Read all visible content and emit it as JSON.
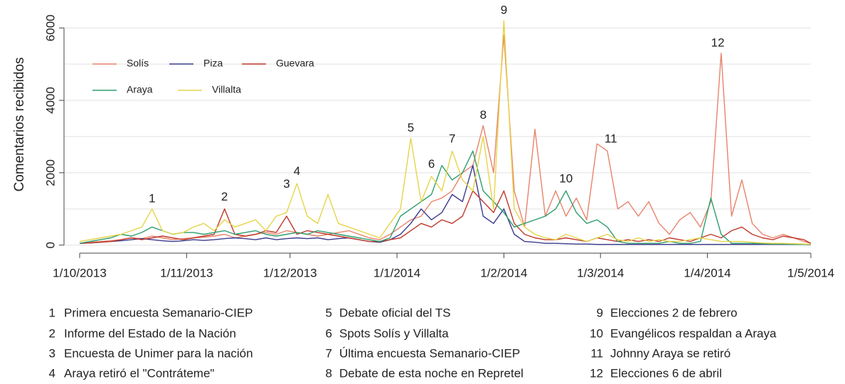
{
  "chart_data": {
    "type": "line",
    "y_label": "Comentarios recibidos",
    "xlim": [
      "2013-10-01",
      "2014-05-01"
    ],
    "xticks": [
      {
        "value": "2013-10-01",
        "label": "1/10/2013"
      },
      {
        "value": "2013-11-01",
        "label": "1/11/2013"
      },
      {
        "value": "2013-12-01",
        "label": "1/12/2013"
      },
      {
        "value": "2014-01-01",
        "label": "1/1/2014"
      },
      {
        "value": "2014-02-01",
        "label": "1/2/2014"
      },
      {
        "value": "2014-03-01",
        "label": "1/3/2014"
      },
      {
        "value": "2014-04-01",
        "label": "1/4/2014"
      },
      {
        "value": "2014-05-01",
        "label": "1/5/2014"
      }
    ],
    "ylim": [
      -300,
      6300
    ],
    "yticks": [
      0,
      2000,
      4000,
      6000
    ],
    "minor_yticks": [
      1000,
      3000,
      5000
    ],
    "grid": true,
    "legend": "upper left",
    "x": [
      "2013-10-01",
      "2013-10-04",
      "2013-10-07",
      "2013-10-10",
      "2013-10-13",
      "2013-10-16",
      "2013-10-19",
      "2013-10-22",
      "2013-10-25",
      "2013-10-28",
      "2013-10-31",
      "2013-11-03",
      "2013-11-06",
      "2013-11-09",
      "2013-11-12",
      "2013-11-15",
      "2013-11-18",
      "2013-11-21",
      "2013-11-24",
      "2013-11-27",
      "2013-11-30",
      "2013-12-03",
      "2013-12-06",
      "2013-12-09",
      "2013-12-12",
      "2013-12-15",
      "2013-12-18",
      "2013-12-21",
      "2013-12-24",
      "2013-12-27",
      "2013-12-30",
      "2014-01-02",
      "2014-01-05",
      "2014-01-08",
      "2014-01-11",
      "2014-01-14",
      "2014-01-17",
      "2014-01-20",
      "2014-01-23",
      "2014-01-26",
      "2014-01-29",
      "2014-02-01",
      "2014-02-04",
      "2014-02-07",
      "2014-02-10",
      "2014-02-13",
      "2014-02-16",
      "2014-02-19",
      "2014-02-22",
      "2014-02-25",
      "2014-02-28",
      "2014-03-03",
      "2014-03-06",
      "2014-03-09",
      "2014-03-12",
      "2014-03-15",
      "2014-03-18",
      "2014-03-21",
      "2014-03-24",
      "2014-03-27",
      "2014-03-30",
      "2014-04-02",
      "2014-04-05",
      "2014-04-08",
      "2014-04-11",
      "2014-04-14",
      "2014-04-17",
      "2014-04-20",
      "2014-04-23",
      "2014-04-26",
      "2014-04-29",
      "2014-05-01"
    ],
    "series": [
      {
        "name": "Solís",
        "color": "#e8836b",
        "values": [
          50,
          80,
          100,
          120,
          150,
          200,
          180,
          250,
          200,
          150,
          180,
          200,
          220,
          250,
          300,
          200,
          250,
          300,
          350,
          300,
          400,
          350,
          300,
          250,
          300,
          350,
          400,
          300,
          200,
          150,
          300,
          500,
          700,
          800,
          1200,
          1300,
          1500,
          2000,
          2200,
          3300,
          2000,
          5800,
          1500,
          500,
          3200,
          800,
          1500,
          800,
          1300,
          700,
          2800,
          2600,
          1000,
          1200,
          800,
          1200,
          600,
          300,
          700,
          900,
          500,
          1200,
          5300,
          800,
          1800,
          600,
          300,
          200,
          300,
          200,
          100,
          50
        ]
      },
      {
        "name": "Piza",
        "color": "#3b3b8f",
        "values": [
          50,
          60,
          80,
          100,
          120,
          150,
          180,
          150,
          120,
          100,
          120,
          150,
          130,
          150,
          180,
          200,
          180,
          150,
          200,
          150,
          180,
          200,
          180,
          200,
          150,
          180,
          200,
          150,
          100,
          80,
          150,
          300,
          600,
          1000,
          700,
          900,
          1400,
          1200,
          2200,
          800,
          600,
          1000,
          300,
          100,
          80,
          50,
          50,
          40,
          30,
          30,
          20,
          20,
          20,
          20,
          20,
          20,
          20,
          20,
          20,
          20,
          20,
          20,
          20,
          20,
          20,
          20,
          20,
          20,
          20,
          20,
          20,
          10
        ]
      },
      {
        "name": "Guevara",
        "color": "#c0392b",
        "values": [
          50,
          60,
          80,
          100,
          150,
          200,
          150,
          200,
          250,
          200,
          150,
          200,
          250,
          300,
          1000,
          300,
          250,
          300,
          400,
          350,
          800,
          300,
          400,
          350,
          300,
          250,
          200,
          150,
          100,
          100,
          150,
          200,
          400,
          600,
          500,
          700,
          600,
          800,
          1500,
          1200,
          900,
          1500,
          600,
          300,
          200,
          150,
          150,
          200,
          150,
          100,
          200,
          150,
          100,
          150,
          100,
          150,
          100,
          200,
          150,
          100,
          200,
          300,
          200,
          400,
          500,
          300,
          200,
          150,
          250,
          200,
          150,
          50
        ]
      },
      {
        "name": "Araya",
        "color": "#2e9e6e",
        "values": [
          50,
          100,
          150,
          200,
          300,
          250,
          350,
          500,
          400,
          300,
          350,
          350,
          300,
          350,
          400,
          300,
          350,
          400,
          300,
          250,
          300,
          350,
          300,
          400,
          350,
          300,
          250,
          200,
          150,
          100,
          200,
          800,
          1000,
          1200,
          1400,
          2200,
          1800,
          2000,
          2600,
          1500,
          1200,
          900,
          500,
          600,
          700,
          800,
          1000,
          1500,
          900,
          600,
          700,
          500,
          100,
          50,
          50,
          50,
          50,
          100,
          50,
          50,
          100,
          1300,
          300,
          50,
          50,
          50,
          40,
          30,
          30,
          20,
          20,
          10
        ]
      },
      {
        "name": "Villalta",
        "color": "#e5d44a",
        "values": [
          100,
          150,
          200,
          250,
          300,
          400,
          500,
          1000,
          400,
          300,
          350,
          500,
          600,
          400,
          700,
          500,
          600,
          700,
          400,
          800,
          900,
          1700,
          800,
          600,
          1400,
          600,
          500,
          400,
          300,
          200,
          600,
          1000,
          2950,
          1200,
          1900,
          1500,
          2600,
          1800,
          1500,
          3000,
          1000,
          6200,
          1000,
          500,
          300,
          200,
          150,
          300,
          200,
          100,
          200,
          300,
          150,
          100,
          200,
          100,
          150,
          100,
          100,
          150,
          200,
          150,
          100,
          100,
          100,
          80,
          60,
          50,
          50,
          40,
          30,
          20
        ]
      }
    ],
    "annotations": [
      {
        "label": "1",
        "x": "2013-10-22",
        "y": 1000
      },
      {
        "label": "2",
        "x": "2013-11-12",
        "y": 1050
      },
      {
        "label": "3",
        "x": "2013-11-30",
        "y": 1400
      },
      {
        "label": "4",
        "x": "2013-12-03",
        "y": 1750
      },
      {
        "label": "5",
        "x": "2014-01-05",
        "y": 2950
      },
      {
        "label": "6",
        "x": "2014-01-11",
        "y": 1950
      },
      {
        "label": "7",
        "x": "2014-01-17",
        "y": 2650
      },
      {
        "label": "8",
        "x": "2014-01-26",
        "y": 3300
      },
      {
        "label": "9",
        "x": "2014-02-01",
        "y": 6200
      },
      {
        "label": "10",
        "x": "2014-02-19",
        "y": 1550
      },
      {
        "label": "11",
        "x": "2014-03-04",
        "y": 2650
      },
      {
        "label": "12",
        "x": "2014-04-04",
        "y": 5300
      }
    ],
    "notes": [
      {
        "number": "1",
        "text": "Primera encuesta Semanario-CIEP"
      },
      {
        "number": "2",
        "text": "Informe del Estado de la Nación"
      },
      {
        "number": "3",
        "text": "Encuesta de Unimer para la nación"
      },
      {
        "number": "4",
        "text": "Araya retiró el \"Contráteme\""
      },
      {
        "number": "5",
        "text": "Debate oficial del TS"
      },
      {
        "number": "6",
        "text": "Spots Solís y Villalta"
      },
      {
        "number": "7",
        "text": "Última encuesta Semanario-CIEP"
      },
      {
        "number": "8",
        "text": "Debate de esta noche en Repretel"
      },
      {
        "number": "9",
        "text": "Elecciones 2 de febrero"
      },
      {
        "number": "10",
        "text": "Evangélicos respaldan a Araya"
      },
      {
        "number": "11",
        "text": "Johnny Araya se retiró"
      },
      {
        "number": "12",
        "text": "Elecciones 6 de abril"
      }
    ]
  }
}
